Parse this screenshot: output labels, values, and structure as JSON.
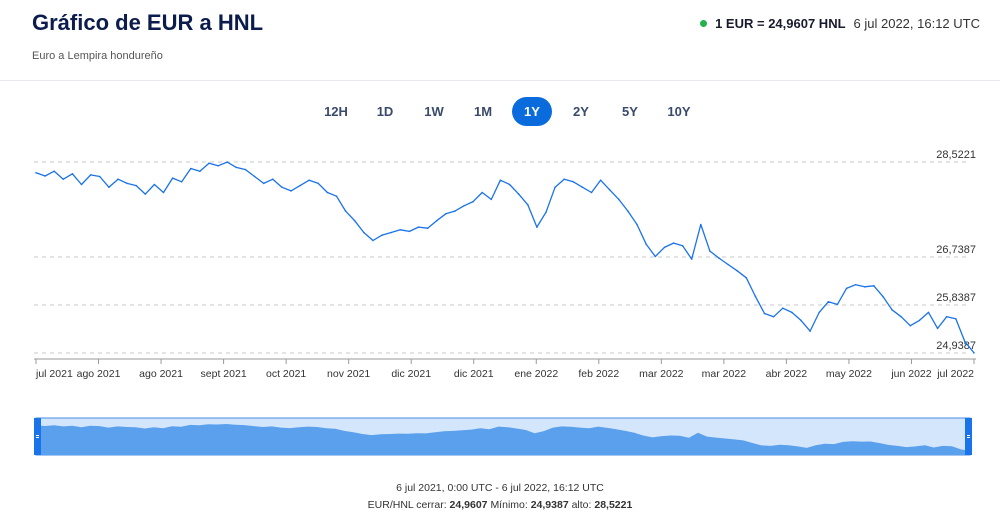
{
  "header": {
    "title": "Gráfico de EUR a HNL",
    "subtitle": "Euro a Lempira hondureño",
    "rate": "1 EUR = 24,9607 HNL",
    "timestamp": "6 jul 2022, 16:12 UTC",
    "live_color": "#22b14c"
  },
  "ranges": [
    {
      "label": "12H",
      "active": false
    },
    {
      "label": "1D",
      "active": false
    },
    {
      "label": "1W",
      "active": false
    },
    {
      "label": "1M",
      "active": false
    },
    {
      "label": "1Y",
      "active": true
    },
    {
      "label": "2Y",
      "active": false
    },
    {
      "label": "5Y",
      "active": false
    },
    {
      "label": "10Y",
      "active": false
    }
  ],
  "chart_data": {
    "type": "line",
    "series": [
      {
        "values": [
          28.32,
          28.26,
          28.35,
          28.2,
          28.3,
          28.1,
          28.28,
          28.25,
          28.05,
          28.2,
          28.12,
          28.08,
          27.92,
          28.1,
          27.95,
          28.22,
          28.15,
          28.4,
          28.35,
          28.5,
          28.45,
          28.52,
          28.42,
          28.38,
          28.25,
          28.12,
          28.2,
          28.05,
          27.98,
          28.08,
          28.18,
          28.12,
          27.95,
          27.88,
          27.6,
          27.42,
          27.2,
          27.05,
          27.15,
          27.2,
          27.25,
          27.22,
          27.3,
          27.28,
          27.42,
          27.55,
          27.6,
          27.7,
          27.78,
          27.95,
          27.82,
          28.18,
          28.1,
          27.92,
          27.72,
          27.3,
          27.58,
          28.05,
          28.2,
          28.15,
          28.05,
          27.95,
          28.18,
          28.0,
          27.82,
          27.6,
          27.35,
          26.98,
          26.75,
          26.92,
          27.0,
          26.95,
          26.7,
          27.35,
          26.85,
          26.72,
          26.6,
          26.48,
          26.35,
          26.0,
          25.68,
          25.62,
          25.78,
          25.7,
          25.55,
          25.35,
          25.7,
          25.9,
          25.85,
          26.15,
          26.22,
          26.18,
          26.2,
          26.0,
          25.75,
          25.62,
          25.45,
          25.55,
          25.7,
          25.4,
          25.62,
          25.58,
          25.15,
          24.94
        ]
      }
    ],
    "x_ticks": [
      "jul 2021",
      "ago 2021",
      "ago 2021",
      "sept 2021",
      "oct 2021",
      "nov 2021",
      "dic 2021",
      "dic 2021",
      "ene 2022",
      "feb 2022",
      "mar 2022",
      "mar 2022",
      "abr 2022",
      "may 2022",
      "jun 2022",
      "jul 2022"
    ],
    "y_ticks": [
      "28,5221",
      "26,7387",
      "25,8387",
      "24,9387"
    ],
    "ylim": [
      24.9387,
      28.5221
    ],
    "grid": true,
    "line_color": "#1a73e8",
    "nav_fill": "#5aa0ec",
    "nav_bg": "#d4e6fb"
  },
  "footer": {
    "range": "6 jul 2021, 0:00 UTC - 6 jul 2022, 16:12 UTC",
    "pair": "EUR/HNL cerrar:",
    "close": "24,9607",
    "min_label": "Mínimo:",
    "min": "24,9387",
    "max_label": "alto:",
    "max": "28,5221"
  }
}
